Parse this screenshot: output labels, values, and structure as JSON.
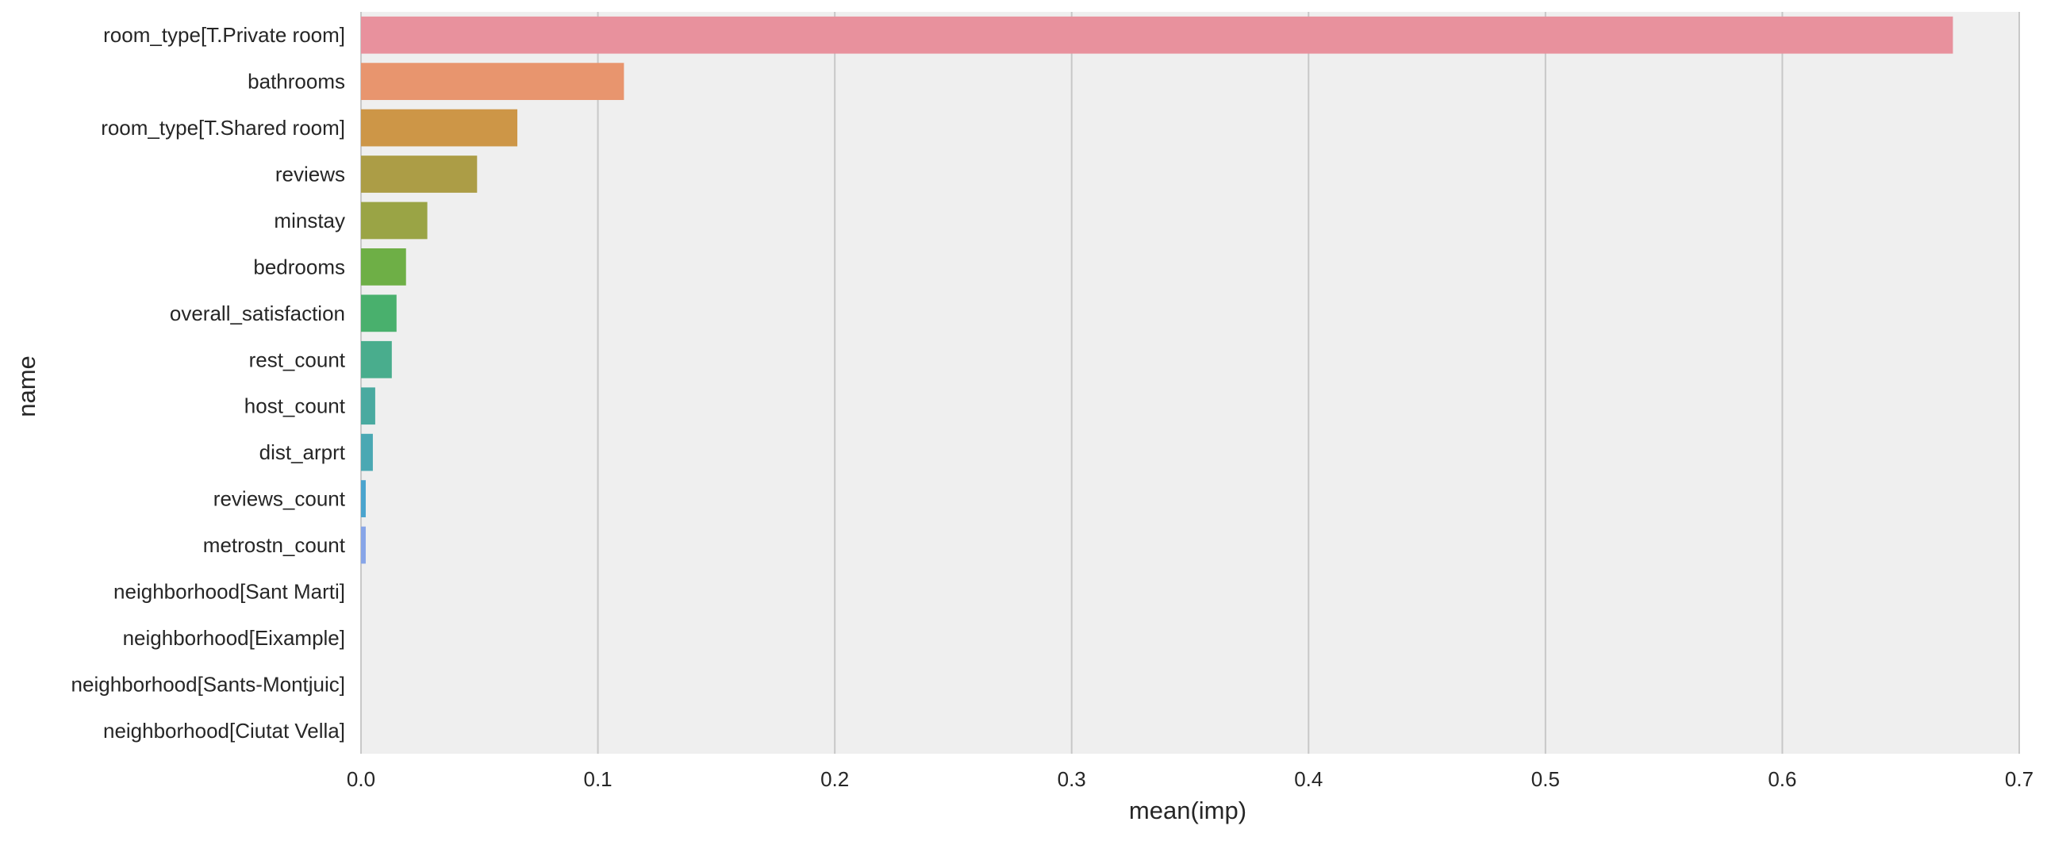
{
  "chart_data": {
    "type": "bar",
    "orientation": "horizontal",
    "title": "",
    "xlabel": "mean(imp)",
    "ylabel": "name",
    "xlim": [
      0.0,
      0.7
    ],
    "xticks": [
      0.0,
      0.1,
      0.2,
      0.3,
      0.4,
      0.5,
      0.6,
      0.7
    ],
    "xtick_labels": [
      "0.0",
      "0.1",
      "0.2",
      "0.3",
      "0.4",
      "0.5",
      "0.6",
      "0.7"
    ],
    "grid": "vertical",
    "legend": "none",
    "background_color": "#efefef",
    "categories": [
      "room_type[T.Private room]",
      "bathrooms",
      "room_type[T.Shared room]",
      "reviews",
      "minstay",
      "bedrooms",
      "overall_satisfaction",
      "rest_count",
      "host_count",
      "dist_arprt",
      "reviews_count",
      "metrostn_count",
      "neighborhood[Sant Marti]",
      "neighborhood[Eixample]",
      "neighborhood[Sants-Montjuic]",
      "neighborhood[Ciutat Vella]"
    ],
    "values": [
      0.672,
      0.111,
      0.066,
      0.049,
      0.028,
      0.019,
      0.015,
      0.013,
      0.006,
      0.005,
      0.002,
      0.002,
      0.0,
      0.0,
      0.0,
      0.0
    ],
    "colors": [
      "#e8919d",
      "#e8956e",
      "#cd9647",
      "#ac9d46",
      "#9aa445",
      "#6eaf46",
      "#49b06d",
      "#49ad8d",
      "#4aaaa0",
      "#4aa8b3",
      "#4aa4ce",
      "#87a5e8",
      "#aa9ff0",
      "#cb93ee",
      "#e78fe0",
      "#e88eb9"
    ]
  }
}
